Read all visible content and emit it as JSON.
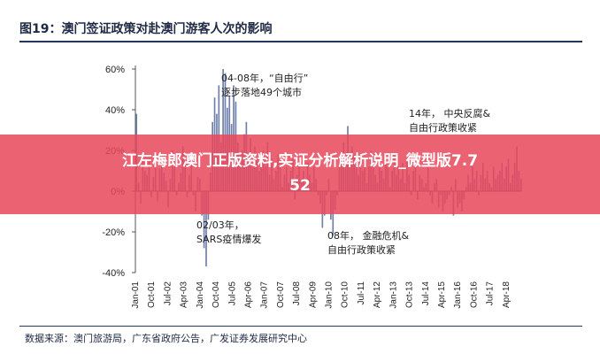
{
  "figure": {
    "title": "图19：澳门签证政策对赴澳门游客人次的影响",
    "source": "数据来源：澳门旅游局，广东省政府公告，广发证券发展研究中心"
  },
  "banner": {
    "line1": "江左梅郎澳门正版资料,实证分析解析说明_微型版7.7",
    "line2": "52"
  },
  "colors": {
    "series": "#6e7fa9",
    "title": "#1f2a44",
    "rule": "#23375c",
    "banner": "#e8485c"
  },
  "chart_data": {
    "type": "bar",
    "title": "",
    "xlabel": "",
    "ylabel": "",
    "ylim": [
      -40,
      60
    ],
    "yticks": [
      "60%",
      "40%",
      "20%",
      "0%",
      "-20%",
      "-40%"
    ],
    "ytick_values": [
      60,
      40,
      20,
      0,
      -20,
      -40
    ],
    "xticks": [
      "Jan-01",
      "Oct-01",
      "Jul-02",
      "Apr-03",
      "Jan-04",
      "Oct-04",
      "Jul-05",
      "Apr-06",
      "Jan-07",
      "Oct-07",
      "Jul-08",
      "Apr-09",
      "Jan-10",
      "Oct-10",
      "Jul-11",
      "Apr-12",
      "Jan-13",
      "Oct-13",
      "Jul-14",
      "Apr-15",
      "Jan-16",
      "Oct-16",
      "Jul-17",
      "Apr-18"
    ],
    "series": [
      {
        "values": [
          38,
          4,
          -6,
          17,
          10,
          8,
          16,
          -3,
          7,
          14,
          -5,
          11,
          12,
          9,
          5,
          -8,
          6,
          20,
          13,
          -2,
          4,
          9,
          22,
          15,
          -3,
          8,
          16,
          -2,
          -10,
          7,
          6,
          -12,
          -28,
          -37,
          -14,
          9,
          34,
          46,
          38,
          52,
          24,
          60,
          58,
          41,
          47,
          33,
          52,
          44,
          24,
          16,
          20,
          28,
          34,
          18,
          26,
          12,
          22,
          16,
          10,
          14,
          20,
          12,
          24,
          8,
          16,
          6,
          10,
          18,
          14,
          2,
          8,
          12,
          4,
          10,
          16,
          -4,
          8,
          14,
          6,
          10,
          2,
          14,
          8,
          4,
          12,
          6,
          -2,
          -6,
          -18,
          -12,
          -2,
          6,
          -14,
          -22,
          -9,
          -2,
          12,
          18,
          24,
          16,
          32,
          14,
          22,
          18,
          12,
          8,
          16,
          10,
          14,
          4,
          12,
          20,
          18,
          8,
          4,
          14,
          10,
          6,
          18,
          12,
          2,
          10,
          16,
          8,
          12,
          6,
          14,
          4,
          16,
          8,
          -2,
          10,
          12,
          -4,
          8,
          6,
          2,
          4,
          12,
          -2,
          -6,
          4,
          6,
          -8,
          -2,
          -10,
          -6,
          -4,
          -2,
          2,
          -12,
          6,
          -8,
          -6,
          -10,
          -4,
          2,
          8,
          4,
          12,
          6,
          10,
          -2,
          8,
          14,
          6,
          10,
          4,
          2,
          12,
          6,
          8,
          10,
          14,
          6,
          12,
          16,
          4,
          8,
          14,
          22,
          10,
          6
        ]
      }
    ],
    "annotations": [
      {
        "lines": [
          "04-08年，“自由行”",
          "逐步落地49个城市"
        ],
        "at": {
          "x": "Apr-04",
          "y": 58
        }
      },
      {
        "lines": [
          "02/03年，",
          "SARS疫情爆发"
        ],
        "at": {
          "x": "Apr-03",
          "y": -36
        }
      },
      {
        "lines": [
          "08年，  金融危机&",
          "自由行政策收紧"
        ],
        "at": {
          "x": "Jan-09",
          "y": -20
        }
      },
      {
        "lines": [
          "14年，  中央反腐&",
          "自由行政策收紧"
        ],
        "at": {
          "x": "Oct-15",
          "y": 25
        }
      }
    ]
  }
}
